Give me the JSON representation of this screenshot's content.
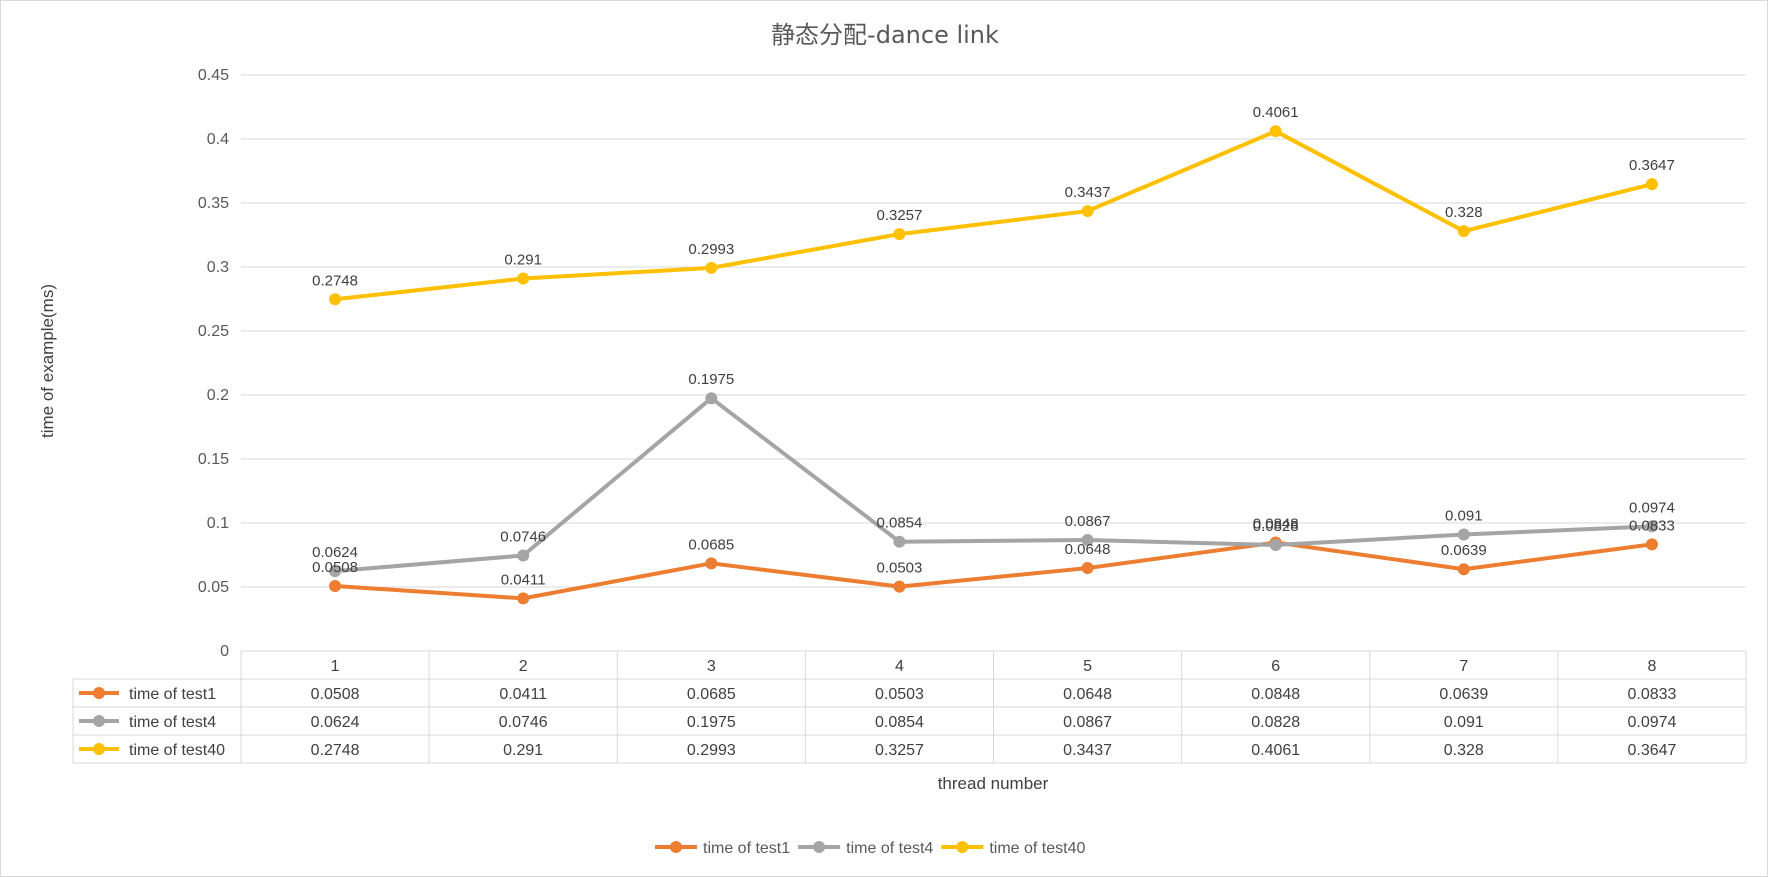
{
  "chart_data": {
    "type": "line",
    "title": "静态分配-dance link",
    "xlabel": "thread number",
    "ylabel": "time of example(ms)",
    "categories": [
      "1",
      "2",
      "3",
      "4",
      "5",
      "6",
      "7",
      "8"
    ],
    "ylim": [
      0,
      0.45
    ],
    "yticks": [
      "0",
      "0.05",
      "0.1",
      "0.15",
      "0.2",
      "0.25",
      "0.3",
      "0.35",
      "0.4",
      "0.45"
    ],
    "grid": true,
    "legend_position": "bottom",
    "data_table": true,
    "series": [
      {
        "name": "time of test1",
        "color": "#ED7D31",
        "values": [
          0.0508,
          0.0411,
          0.0685,
          0.0503,
          0.0648,
          0.0848,
          0.0639,
          0.0833
        ],
        "labels": [
          "0.0508",
          "0.0411",
          "0.0685",
          "0.0503",
          "0.0648",
          "0.0848",
          "0.0639",
          "0.0833"
        ]
      },
      {
        "name": "time of test4",
        "color": "#A5A5A5",
        "values": [
          0.0624,
          0.0746,
          0.1975,
          0.0854,
          0.0867,
          0.0828,
          0.091,
          0.0974
        ],
        "labels": [
          "0.0624",
          "0.0746",
          "0.1975",
          "0.0854",
          "0.0867",
          "0.0828",
          "0.091",
          "0.0974"
        ]
      },
      {
        "name": "time of test40",
        "color": "#FFC000",
        "values": [
          0.2748,
          0.291,
          0.2993,
          0.3257,
          0.3437,
          0.4061,
          0.328,
          0.3647
        ],
        "labels": [
          "0.2748",
          "0.291",
          "0.2993",
          "0.3257",
          "0.3437",
          "0.4061",
          "0.328",
          "0.3647"
        ]
      }
    ]
  }
}
